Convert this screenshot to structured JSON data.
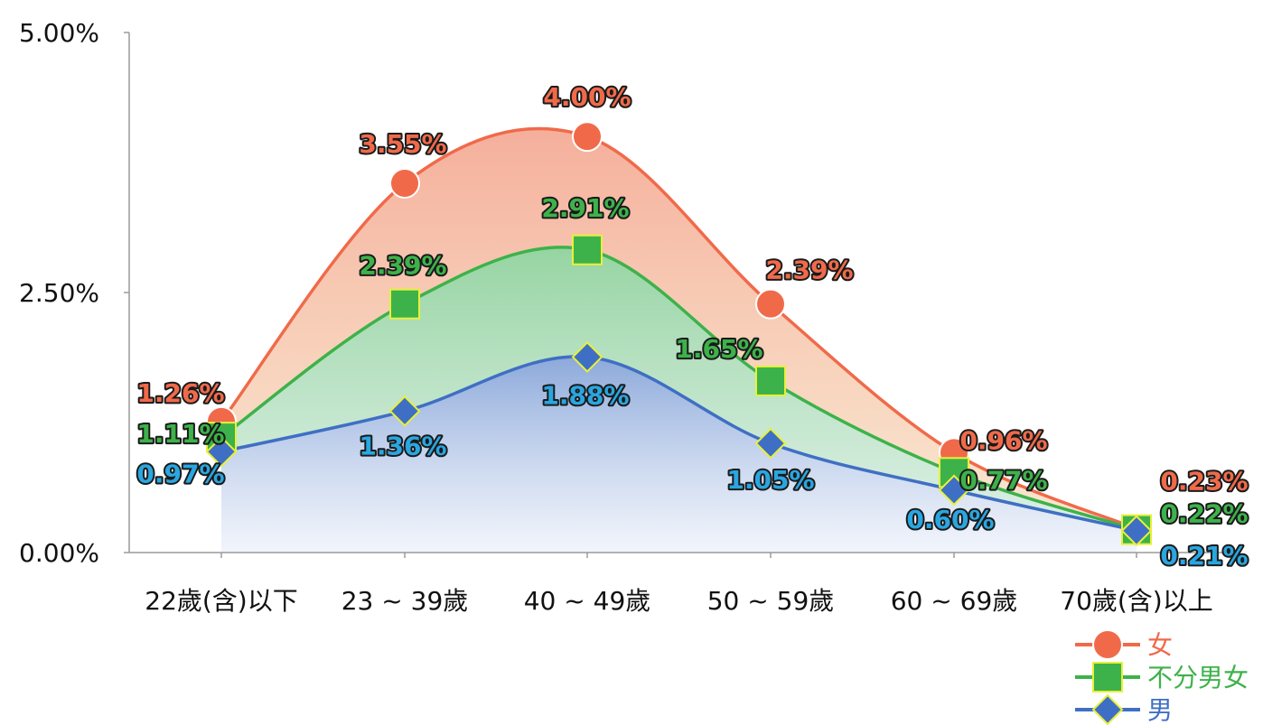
{
  "chart_data": {
    "type": "area",
    "categories": [
      "22歲(含)以下",
      "23 ~ 39歲",
      "40 ~ 49歲",
      "50 ~ 59歲",
      "60 ~ 69歲",
      "70歲(含)以上"
    ],
    "series": [
      {
        "name": "女",
        "values": [
          1.26,
          3.55,
          4.0,
          2.39,
          0.96,
          0.23
        ],
        "labels": [
          "1.26%",
          "3.55%",
          "4.00%",
          "2.39%",
          "0.96%",
          "0.23%"
        ],
        "color": "#f06a4a",
        "marker": "circle"
      },
      {
        "name": "不分男女",
        "values": [
          1.11,
          2.39,
          2.91,
          1.65,
          0.77,
          0.22
        ],
        "labels": [
          "1.11%",
          "2.39%",
          "2.91%",
          "1.65%",
          "0.77%",
          "0.22%"
        ],
        "color": "#3db24a",
        "marker": "square"
      },
      {
        "name": "男",
        "values": [
          0.97,
          1.36,
          1.88,
          1.05,
          0.6,
          0.21
        ],
        "labels": [
          "0.97%",
          "1.36%",
          "1.88%",
          "1.05%",
          "0.60%",
          "0.21%"
        ],
        "color": "#3f6fc4",
        "marker": "diamond"
      }
    ],
    "label_colors": [
      "#f06a4a",
      "#3db24a",
      "#2aa6e0"
    ],
    "yticks": [
      "0.00%",
      "2.50%",
      "5.00%"
    ],
    "ylim": [
      0,
      5
    ],
    "grid": false,
    "legend_position": "bottom-right",
    "title": "",
    "xlabel": "",
    "ylabel": ""
  }
}
